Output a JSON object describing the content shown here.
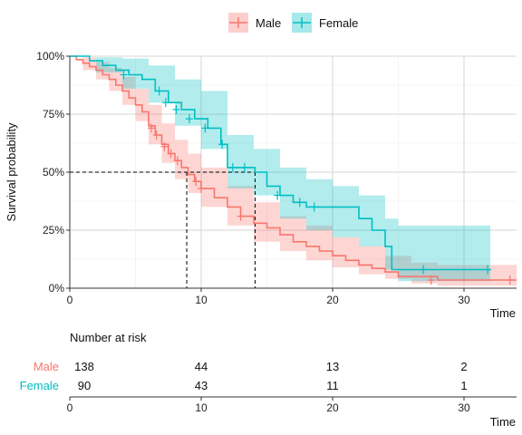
{
  "chart_data": {
    "type": "line",
    "subtype": "kaplan-meier survival curve with confidence bands and risk table",
    "ylabel": "Survival probability",
    "xlabel": "Time",
    "xlim": [
      0,
      34
    ],
    "ylim": [
      0,
      1
    ],
    "x_ticks": [
      0,
      10,
      20,
      30
    ],
    "x_tick_labels": [
      "0",
      "10",
      "20",
      "30"
    ],
    "y_ticks": [
      0,
      0.25,
      0.5,
      0.75,
      1
    ],
    "y_tick_labels": [
      "0%",
      "25%",
      "50%",
      "75%",
      "100%"
    ],
    "grid": true,
    "legend_position": "top",
    "median_survival": [
      {
        "series": "Male",
        "time": 8.9
      },
      {
        "series": "Female",
        "time": 14.1
      }
    ],
    "series": [
      {
        "name": "Male",
        "color": "#F8766D",
        "steps": [
          [
            0,
            1
          ],
          [
            0.5,
            0.985
          ],
          [
            1,
            0.97
          ],
          [
            1.5,
            0.955
          ],
          [
            2,
            0.94
          ],
          [
            2.5,
            0.92
          ],
          [
            3,
            0.9
          ],
          [
            3.5,
            0.875
          ],
          [
            4,
            0.85
          ],
          [
            4.5,
            0.82
          ],
          [
            5,
            0.79
          ],
          [
            5.5,
            0.76
          ],
          [
            6,
            0.7
          ],
          [
            6.5,
            0.66
          ],
          [
            7,
            0.62
          ],
          [
            7.5,
            0.58
          ],
          [
            8,
            0.55
          ],
          [
            8.5,
            0.52
          ],
          [
            9,
            0.49
          ],
          [
            9.5,
            0.46
          ],
          [
            10,
            0.43
          ],
          [
            11,
            0.39
          ],
          [
            12,
            0.35
          ],
          [
            13,
            0.31
          ],
          [
            14,
            0.28
          ],
          [
            15,
            0.26
          ],
          [
            16,
            0.23
          ],
          [
            17,
            0.2
          ],
          [
            18,
            0.18
          ],
          [
            19,
            0.16
          ],
          [
            20,
            0.14
          ],
          [
            21,
            0.12
          ],
          [
            22,
            0.1
          ],
          [
            23,
            0.085
          ],
          [
            24,
            0.07
          ],
          [
            25,
            0.05
          ],
          [
            26,
            0.05
          ],
          [
            28,
            0.035
          ],
          [
            34,
            0.035
          ]
        ],
        "censored": [
          [
            6.2,
            0.69
          ],
          [
            6.6,
            0.66
          ],
          [
            7.2,
            0.61
          ],
          [
            7.7,
            0.58
          ],
          [
            8.2,
            0.55
          ],
          [
            9.6,
            0.46
          ],
          [
            10,
            0.43
          ],
          [
            13,
            0.31
          ],
          [
            27.5,
            0.035
          ],
          [
            33.5,
            0.035
          ]
        ],
        "ci_lower": [
          [
            0,
            1
          ],
          [
            1,
            0.94
          ],
          [
            2,
            0.9
          ],
          [
            3,
            0.85
          ],
          [
            4,
            0.79
          ],
          [
            5,
            0.72
          ],
          [
            6,
            0.62
          ],
          [
            7,
            0.54
          ],
          [
            8,
            0.47
          ],
          [
            9,
            0.41
          ],
          [
            10,
            0.35
          ],
          [
            12,
            0.27
          ],
          [
            14,
            0.2
          ],
          [
            16,
            0.16
          ],
          [
            18,
            0.12
          ],
          [
            20,
            0.09
          ],
          [
            22,
            0.06
          ],
          [
            24,
            0.04
          ],
          [
            26,
            0.02
          ],
          [
            28,
            0.01
          ],
          [
            34,
            0.01
          ]
        ],
        "ci_upper": [
          [
            0,
            1
          ],
          [
            1,
            0.995
          ],
          [
            2,
            0.975
          ],
          [
            3,
            0.95
          ],
          [
            4,
            0.91
          ],
          [
            5,
            0.86
          ],
          [
            6,
            0.79
          ],
          [
            7,
            0.71
          ],
          [
            8,
            0.64
          ],
          [
            9,
            0.58
          ],
          [
            10,
            0.52
          ],
          [
            12,
            0.44
          ],
          [
            14,
            0.37
          ],
          [
            16,
            0.31
          ],
          [
            18,
            0.27
          ],
          [
            20,
            0.22
          ],
          [
            22,
            0.18
          ],
          [
            24,
            0.14
          ],
          [
            26,
            0.11
          ],
          [
            28,
            0.1
          ],
          [
            34,
            0.1
          ]
        ]
      },
      {
        "name": "Female",
        "color": "#00BFC4",
        "steps": [
          [
            0,
            1
          ],
          [
            1.5,
            0.98
          ],
          [
            2.5,
            0.96
          ],
          [
            3.5,
            0.94
          ],
          [
            4.5,
            0.92
          ],
          [
            5.5,
            0.9
          ],
          [
            6.5,
            0.85
          ],
          [
            7.5,
            0.8
          ],
          [
            8.5,
            0.77
          ],
          [
            9.5,
            0.73
          ],
          [
            10.5,
            0.69
          ],
          [
            11.5,
            0.62
          ],
          [
            12,
            0.52
          ],
          [
            13,
            0.52
          ],
          [
            14.1,
            0.5
          ],
          [
            15,
            0.44
          ],
          [
            16,
            0.4
          ],
          [
            17,
            0.37
          ],
          [
            18,
            0.35
          ],
          [
            22,
            0.3
          ],
          [
            23,
            0.25
          ],
          [
            24,
            0.18
          ],
          [
            24.5,
            0.08
          ],
          [
            32,
            0.08
          ]
        ],
        "censored": [
          [
            4.1,
            0.92
          ],
          [
            6.8,
            0.85
          ],
          [
            7.3,
            0.8
          ],
          [
            8.1,
            0.77
          ],
          [
            9.1,
            0.73
          ],
          [
            10.3,
            0.69
          ],
          [
            11.6,
            0.62
          ],
          [
            12.4,
            0.52
          ],
          [
            13.3,
            0.52
          ],
          [
            15.8,
            0.4
          ],
          [
            17.5,
            0.37
          ],
          [
            18.6,
            0.35
          ],
          [
            26.9,
            0.08
          ],
          [
            31.8,
            0.08
          ]
        ],
        "ci_lower": [
          [
            0,
            1
          ],
          [
            2,
            0.93
          ],
          [
            4,
            0.86
          ],
          [
            6,
            0.8
          ],
          [
            8,
            0.7
          ],
          [
            10,
            0.6
          ],
          [
            12,
            0.43
          ],
          [
            14,
            0.4
          ],
          [
            16,
            0.3
          ],
          [
            18,
            0.25
          ],
          [
            20,
            0.22
          ],
          [
            22,
            0.18
          ],
          [
            24,
            0.08
          ],
          [
            25,
            0.03
          ],
          [
            32,
            0.03
          ]
        ],
        "ci_upper": [
          [
            0,
            1
          ],
          [
            2,
            0.995
          ],
          [
            4,
            0.99
          ],
          [
            6,
            0.96
          ],
          [
            8,
            0.9
          ],
          [
            10,
            0.85
          ],
          [
            12,
            0.66
          ],
          [
            14,
            0.6
          ],
          [
            16,
            0.52
          ],
          [
            18,
            0.47
          ],
          [
            20,
            0.44
          ],
          [
            22,
            0.4
          ],
          [
            24,
            0.3
          ],
          [
            25,
            0.27
          ],
          [
            32,
            0.27
          ]
        ]
      }
    ]
  },
  "risk_table": {
    "title": "Number at risk",
    "xlabel": "Time",
    "x_ticks": [
      0,
      10,
      20,
      30
    ],
    "x_tick_labels": [
      "0",
      "10",
      "20",
      "30"
    ],
    "rows": [
      {
        "name": "Male",
        "color": "#F8766D",
        "values": [
          "138",
          "44",
          "13",
          "2"
        ]
      },
      {
        "name": "Female",
        "color": "#00BFC4",
        "values": [
          "90",
          "43",
          "11",
          "1"
        ]
      }
    ]
  }
}
